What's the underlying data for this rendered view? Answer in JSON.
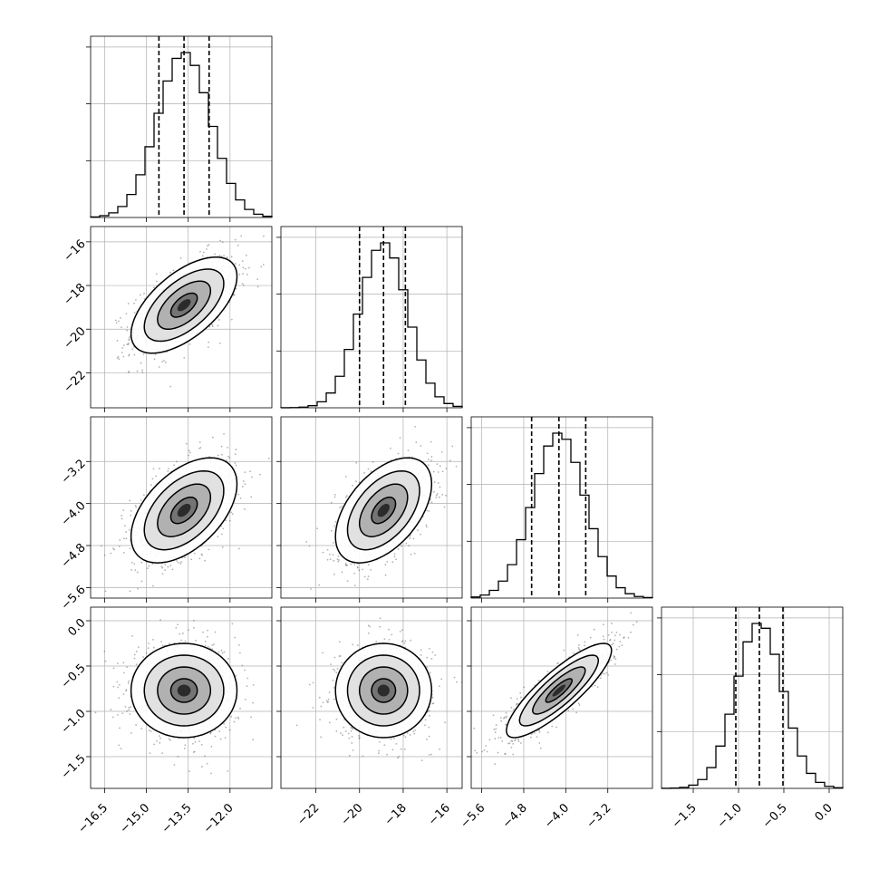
{
  "chart_data": {
    "type": "corner",
    "grid": true,
    "parameters": [
      {
        "range": [
          -17.0,
          -10.5
        ],
        "ticks": [
          -16.5,
          -15.0,
          -13.5,
          -12.0
        ],
        "tick_labels": [
          "−16.5",
          "−15.0",
          "−13.5",
          "−12.0"
        ],
        "mean": -13.65,
        "std": 0.95,
        "quantiles": [
          -14.55,
          -13.65,
          -12.75
        ]
      },
      {
        "range": [
          -23.6,
          -15.3
        ],
        "ticks": [
          -22,
          -20,
          -18,
          -16
        ],
        "tick_labels": [
          "−22",
          "−20",
          "−18",
          "−16"
        ],
        "mean": -18.9,
        "std": 1.1,
        "quantiles": [
          -20.0,
          -18.9,
          -17.9
        ]
      },
      {
        "range": [
          -5.8,
          -2.35
        ],
        "ticks": [
          -5.6,
          -4.8,
          -4.0,
          -3.2
        ],
        "tick_labels": [
          "−5.6",
          "−4.8",
          "−4.0",
          "−3.2"
        ],
        "mean": -4.13,
        "std": 0.5,
        "quantiles": [
          -4.65,
          -4.13,
          -3.62
        ]
      },
      {
        "range": [
          -1.85,
          0.15
        ],
        "ticks": [
          -1.5,
          -1.0,
          -0.5,
          0.0
        ],
        "tick_labels": [
          "−1.5",
          "−1.0",
          "−0.5",
          "0.0"
        ],
        "mean": -0.77,
        "std": 0.26,
        "quantiles": [
          -1.03,
          -0.77,
          -0.51
        ]
      }
    ],
    "correlations": [
      [
        1.0,
        0.6,
        0.5,
        0.0
      ],
      [
        0.6,
        1.0,
        0.5,
        0.0
      ],
      [
        0.5,
        0.5,
        1.0,
        0.85
      ],
      [
        0.0,
        0.0,
        0.85,
        1.0
      ]
    ],
    "contour_levels_sigma": [
      0.5,
      1.0,
      1.5,
      2.0
    ]
  }
}
